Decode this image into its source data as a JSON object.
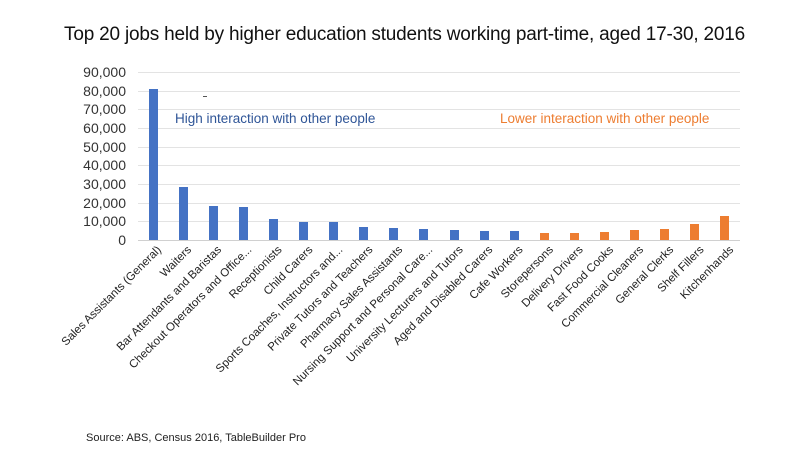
{
  "chart_data": {
    "type": "bar",
    "title": "Top 20 jobs held by higher education students working part-time, aged 17-30, 2016",
    "xlabel": "",
    "ylabel": "",
    "ylim": [
      0,
      90000
    ],
    "yticks": [
      "0",
      "10,000",
      "20,000",
      "30,000",
      "40,000",
      "50,000",
      "60,000",
      "70,000",
      "80,000",
      "90,000"
    ],
    "grid": true,
    "legend": null,
    "categories": [
      "Sales Assistants (General)",
      "Waiters",
      "Bar Attendants and Baristas",
      "Checkout Operators and Office...",
      "Receptionists",
      "Child Carers",
      "Sports Coaches, Instructors and...",
      "Private Tutors and Teachers",
      "Pharmacy Sales Assistants",
      "Nursing Support and Personal Care...",
      "University Lecturers and Tutors",
      "Aged and Disabled Carers",
      "Cafe Workers",
      "Storepersons",
      "Delivery Drivers",
      "Fast Food Cooks",
      "Commercial Cleaners",
      "General Clerks",
      "Shelf Fillers",
      "Kitchenhands"
    ],
    "values": [
      81000,
      28500,
      18200,
      17900,
      11000,
      9700,
      9700,
      7000,
      6300,
      6000,
      5300,
      4900,
      4600,
      3700,
      4000,
      4200,
      5100,
      6000,
      8500,
      12900
    ],
    "groups": [
      "high",
      "high",
      "high",
      "high",
      "high",
      "high",
      "high",
      "high",
      "high",
      "high",
      "high",
      "high",
      "high",
      "low",
      "low",
      "low",
      "low",
      "low",
      "low",
      "low"
    ],
    "colors": {
      "high": "#4472C4",
      "low": "#ED7D31"
    },
    "annotations": [
      {
        "text": "High interaction with other people",
        "color": "#2F5597"
      },
      {
        "text": "Lower interaction with other people",
        "color": "#ED7D31"
      }
    ],
    "source": "Source: ABS, Census 2016, TableBuilder Pro"
  },
  "title": "Top 20 jobs held by higher education students working part-time, aged 17-30, 2016",
  "annotations": {
    "high": "High interaction with other people",
    "low": "Lower interaction with other people"
  },
  "source": "Source: ABS, Census 2016, TableBuilder Pro"
}
